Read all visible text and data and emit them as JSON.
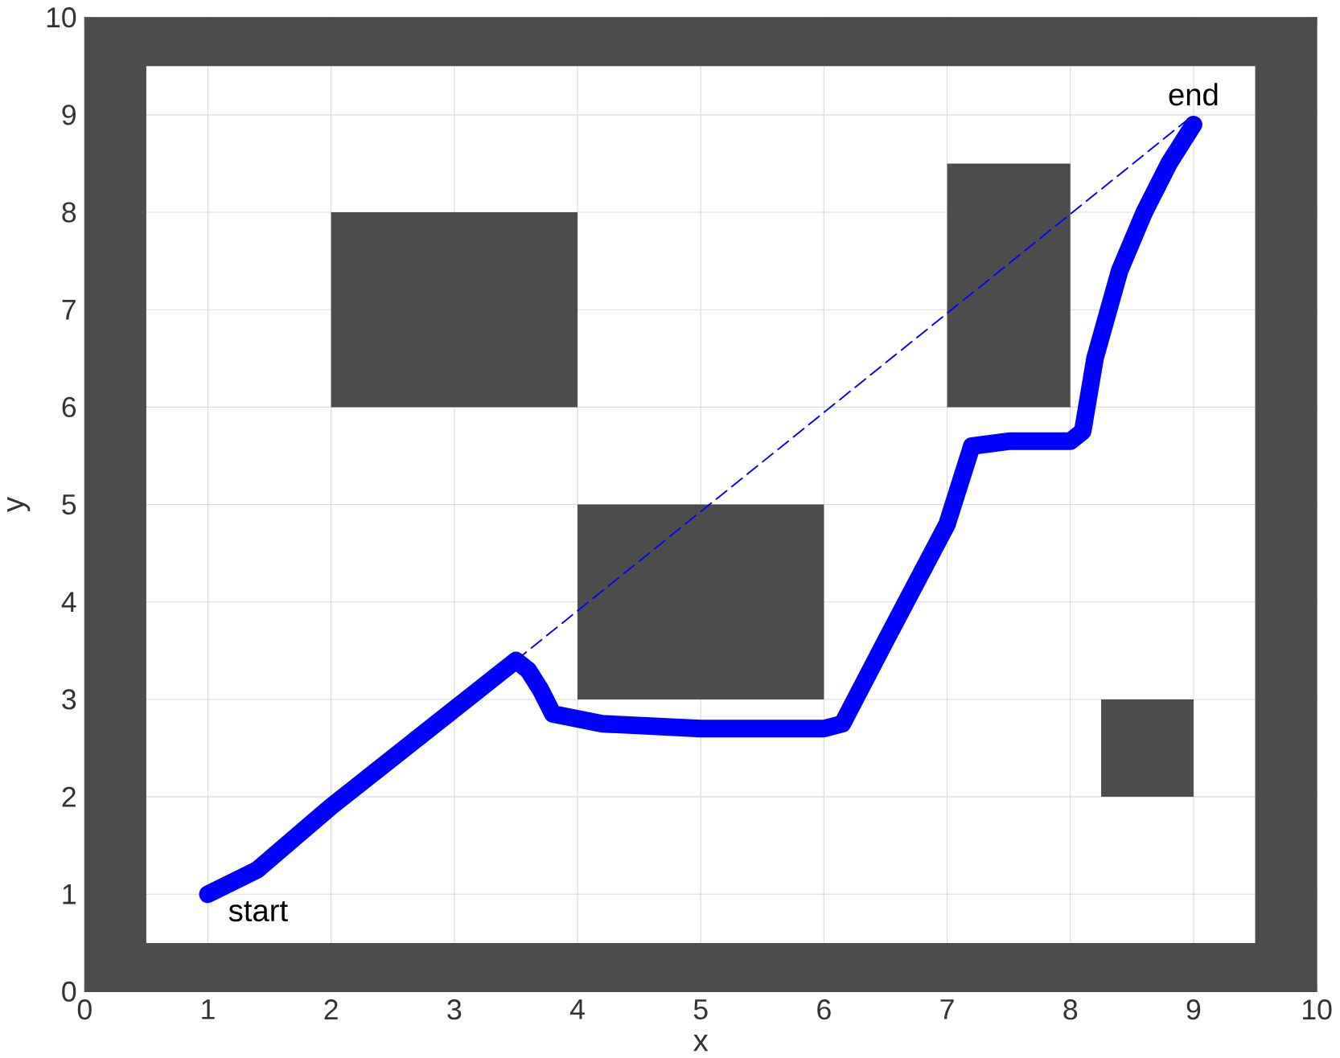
{
  "chart_data": {
    "type": "line",
    "xlabel": "x",
    "ylabel": "y",
    "xlim": [
      0,
      10
    ],
    "ylim": [
      0,
      10
    ],
    "xticks": [
      0,
      1,
      2,
      3,
      4,
      5,
      6,
      7,
      8,
      9,
      10
    ],
    "yticks": [
      0,
      1,
      2,
      3,
      4,
      5,
      6,
      7,
      8,
      9,
      10
    ],
    "grid": true,
    "series": [
      {
        "type": "area",
        "color": "#4c4c4c",
        "x": [
          0,
          10,
          10,
          0,
          null,
          0.5,
          0.5,
          9.5,
          9.5,
          null,
          2,
          4,
          4,
          2,
          null,
          4,
          6,
          6,
          4,
          null,
          7,
          8,
          8,
          7,
          null,
          8.25,
          9,
          9,
          8.25
        ],
        "values": [
          0,
          0,
          10,
          10,
          null,
          0.5,
          9.5,
          9.5,
          0.5,
          null,
          6,
          6,
          8,
          8,
          null,
          3,
          3,
          5,
          5,
          null,
          6,
          6,
          8.5,
          8.5,
          null,
          2,
          2,
          3,
          3
        ]
      },
      {
        "color": "#0000ff",
        "line_style": "dashed",
        "x": [
          3.5,
          9
        ],
        "values": [
          3.4,
          9
        ]
      },
      {
        "color": "#0000ff",
        "line_style": "solid",
        "x": [
          1,
          1.4,
          2,
          3,
          3.5,
          3.6,
          3.7,
          3.8,
          4.2,
          5,
          6,
          6.15,
          6.5,
          7,
          7.2,
          7.5,
          8,
          8.1,
          8.2,
          8.4,
          8.6,
          8.8,
          9
        ],
        "values": [
          1,
          1.25,
          1.9,
          2.9,
          3.4,
          3.3,
          3.1,
          2.85,
          2.75,
          2.7,
          2.7,
          2.75,
          3.6,
          4.8,
          5.6,
          5.65,
          5.65,
          5.75,
          6.5,
          7.4,
          8.0,
          8.5,
          8.9
        ]
      }
    ],
    "annotations": [
      {
        "text": "start",
        "x": 1,
        "y": 1
      },
      {
        "text": "end",
        "x": 9,
        "y": 9
      }
    ]
  }
}
